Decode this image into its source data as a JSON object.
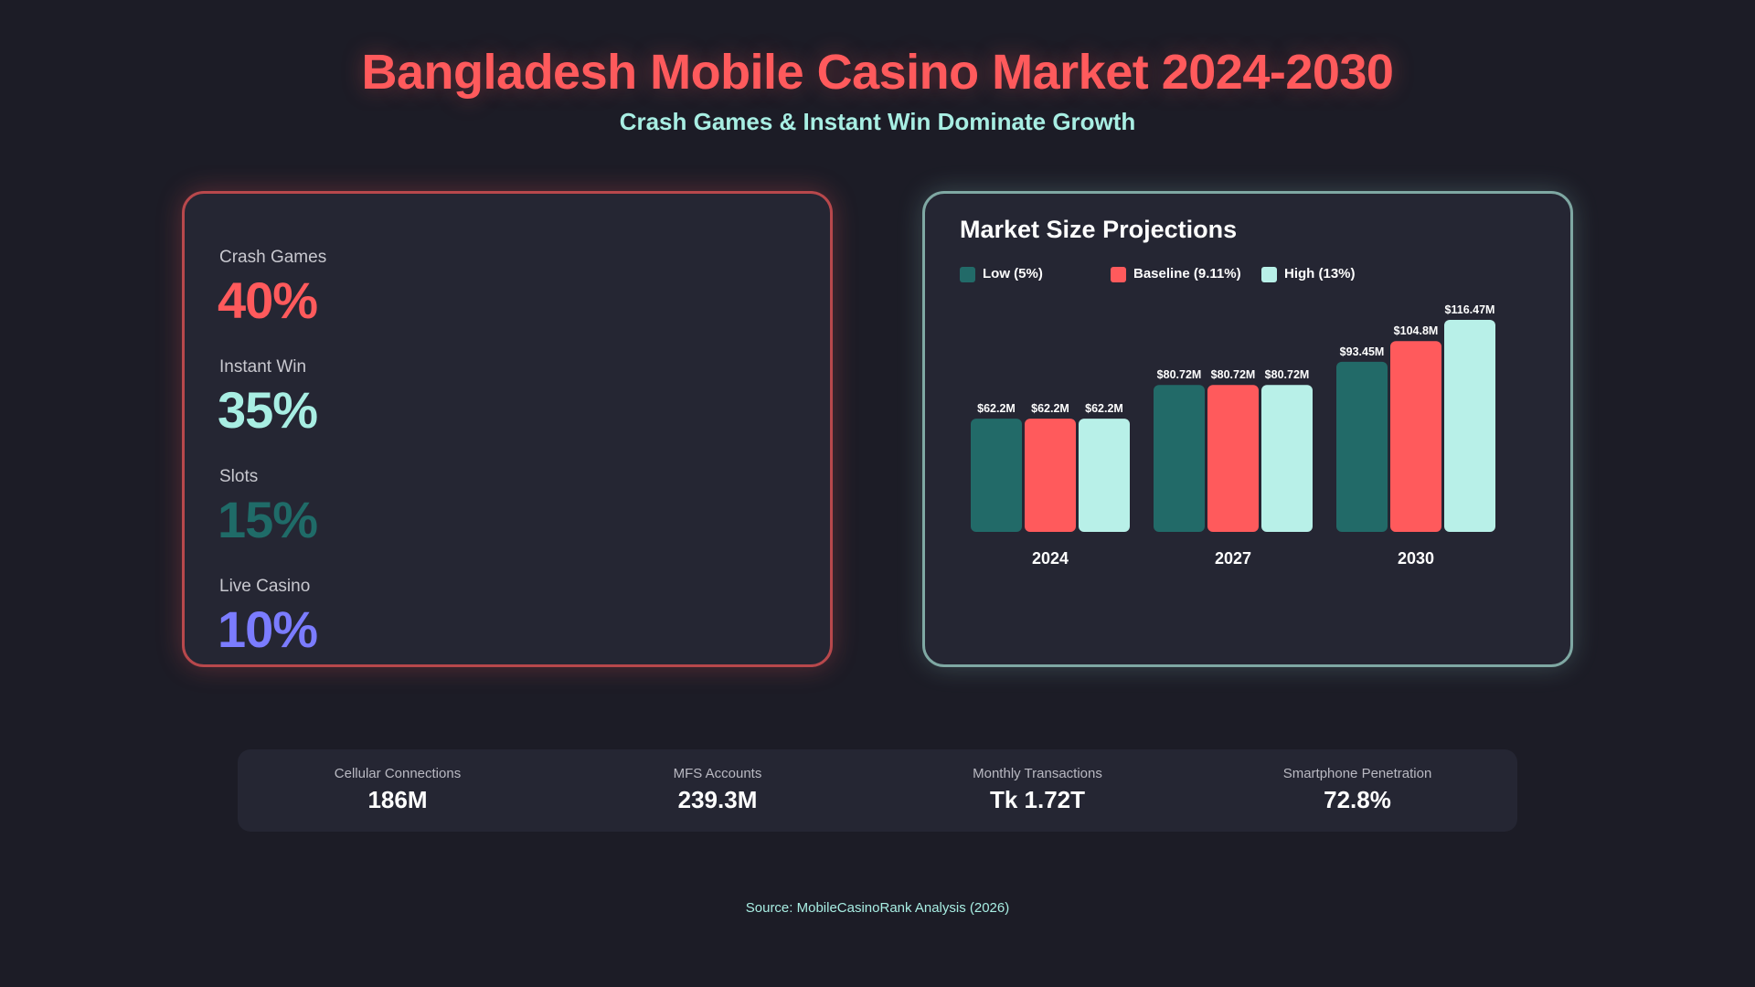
{
  "header": {
    "title": "Bangladesh Mobile Casino Market 2024-2030",
    "subtitle": "Crash Games & Instant Win Dominate Growth"
  },
  "game_share": [
    {
      "label": "Crash Games",
      "value": "40%",
      "color": "#ff5a5c"
    },
    {
      "label": "Instant Win",
      "value": "35%",
      "color": "#a8eee3"
    },
    {
      "label": "Slots",
      "value": "15%",
      "color": "#1f6b68"
    },
    {
      "label": "Live Casino",
      "value": "10%",
      "color": "#7b7cff"
    }
  ],
  "chart_data": {
    "type": "bar",
    "title": "Market Size Projections",
    "categories": [
      "2024",
      "2027",
      "2030"
    ],
    "series": [
      {
        "name": "Low (5%)",
        "color": "#226a68",
        "values": [
          62.2,
          80.72,
          93.45
        ],
        "labels": [
          "$62.2M",
          "$80.72M",
          "$93.45M"
        ]
      },
      {
        "name": "Baseline (9.11%)",
        "color": "#ff5a5c",
        "values": [
          62.2,
          80.72,
          104.8
        ],
        "labels": [
          "$62.2M",
          "$80.72M",
          "$104.8M"
        ]
      },
      {
        "name": "High (13%)",
        "color": "#b8f0e8",
        "values": [
          62.2,
          80.72,
          116.47
        ],
        "labels": [
          "$62.2M",
          "$80.72M",
          "$116.47M"
        ]
      }
    ],
    "unit": "$M",
    "ylim": [
      0,
      116.47
    ],
    "grid": false,
    "legend": "top-left"
  },
  "metrics": [
    {
      "label": "Cellular Connections",
      "value": "186M"
    },
    {
      "label": "MFS Accounts",
      "value": "239.3M"
    },
    {
      "label": "Monthly Transactions",
      "value": "Tk 1.72T"
    },
    {
      "label": "Smartphone Penetration",
      "value": "72.8%"
    }
  ],
  "footer": {
    "source": "Source: MobileCasinoRank Analysis (2026)"
  }
}
